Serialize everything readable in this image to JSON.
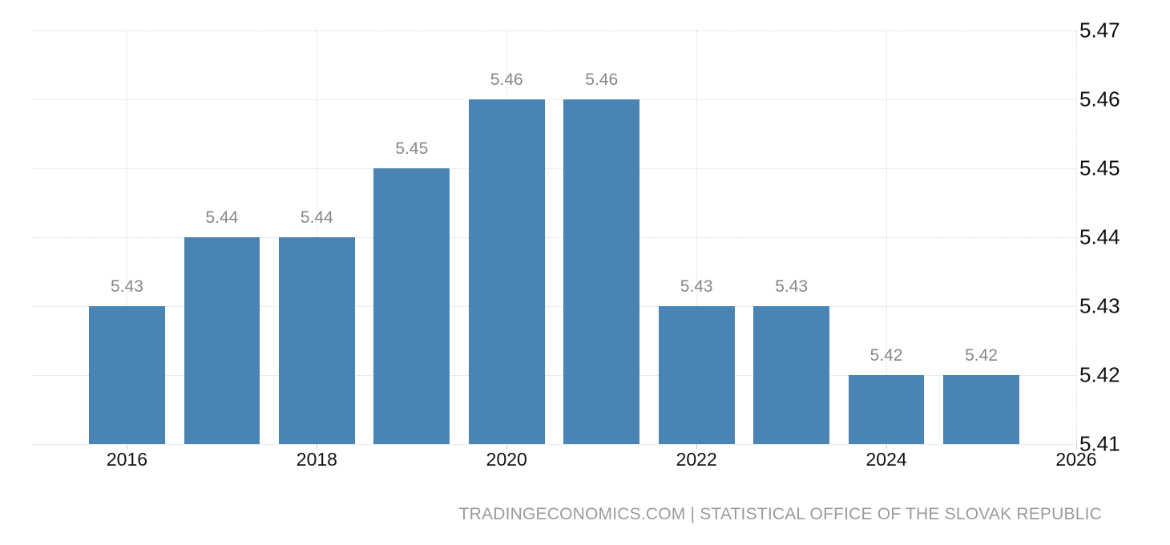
{
  "chart_data": {
    "type": "bar",
    "title": "",
    "xlabel": "",
    "ylabel": "",
    "x": [
      2016,
      2017,
      2018,
      2019,
      2020,
      2021,
      2022,
      2023,
      2024,
      2025
    ],
    "values": [
      5.43,
      5.44,
      5.44,
      5.45,
      5.46,
      5.46,
      5.43,
      5.43,
      5.42,
      5.42
    ],
    "bar_labels": [
      "5.43",
      "5.44",
      "5.44",
      "5.45",
      "5.46",
      "5.46",
      "5.43",
      "5.43",
      "5.42",
      "5.42"
    ],
    "xlim": [
      2015,
      2026
    ],
    "ylim": [
      5.41,
      5.47
    ],
    "x_ticks": [
      "2016",
      "2018",
      "2020",
      "2022",
      "2024",
      "2026"
    ],
    "x_tick_values": [
      2016,
      2018,
      2020,
      2022,
      2024,
      2026
    ],
    "y_ticks": [
      "5.47",
      "5.46",
      "5.45",
      "5.44",
      "5.43",
      "5.42",
      "5.41"
    ],
    "y_tick_values": [
      5.47,
      5.46,
      5.45,
      5.44,
      5.43,
      5.42,
      5.41
    ],
    "bar_width_years": 0.8,
    "grid": "dotted",
    "legend": "none",
    "y_axis_position": "right"
  },
  "colors": {
    "bar": "#4a84b4",
    "grid": "#d8d8d8",
    "value_label": "#878787",
    "axis_label": "#111111",
    "tick_mark": "#c9c9c9",
    "footer_text": "#9b9b9b",
    "background": "#ffffff"
  },
  "footer": {
    "attribution": "TRADINGECONOMICS.COM | STATISTICAL OFFICE OF THE SLOVAK REPUBLIC"
  }
}
